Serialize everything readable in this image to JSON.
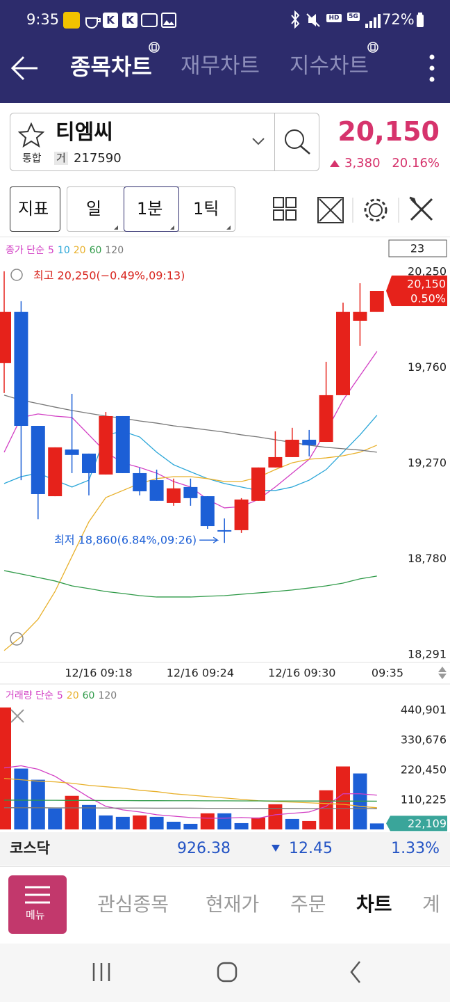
{
  "status_bar": {
    "time": "9:35",
    "battery": "72%"
  },
  "header": {
    "tabs": [
      "종목차트",
      "재무차트",
      "지수차트"
    ]
  },
  "stock": {
    "name": "티엠씨",
    "market": "통합",
    "tag": "거",
    "code": "217590",
    "price": "20,150",
    "change": "3,380",
    "change_rate": "20.16%"
  },
  "toolbar": {
    "buttons": [
      "지표",
      "일",
      "1분",
      "1틱"
    ]
  },
  "chart_data": [
    {
      "type": "candlestick",
      "legend_title": "종가 단순",
      "count": 23,
      "categories": [
        null,
        null,
        null,
        null,
        null,
        "12/16 09:18",
        null,
        null,
        null,
        null,
        null,
        "12/16 09:24",
        null,
        null,
        null,
        null,
        null,
        "12/16 09:30",
        null,
        null,
        null,
        null,
        "09:35"
      ],
      "open": [
        19780,
        20043,
        19459,
        19099,
        19338,
        19317,
        19210,
        19509,
        19217,
        19181,
        19064,
        19146,
        19099,
        18925,
        18925,
        19075,
        19246,
        19299,
        19388,
        19377,
        19616,
        19997,
        20043
      ],
      "high": [
        20250,
        20097,
        19459,
        19349,
        19623,
        19317,
        19530,
        19509,
        19246,
        19235,
        19189,
        19189,
        19099,
        18985,
        19089,
        19246,
        19431,
        19449,
        19438,
        19787,
        20090,
        20189,
        20150
      ],
      "low": [
        19627,
        19181,
        18981,
        19099,
        19217,
        19103,
        19210,
        19217,
        19103,
        19075,
        19050,
        19050,
        18932,
        18860,
        18911,
        19075,
        19246,
        19299,
        19303,
        19377,
        19616,
        19869,
        20043
      ],
      "close": [
        20043,
        19459,
        19110,
        19349,
        19310,
        19217,
        19509,
        19217,
        19124,
        19075,
        19139,
        19089,
        18946,
        18918,
        19082,
        19246,
        19299,
        19388,
        19360,
        19616,
        20043,
        20043,
        20150
      ],
      "up_color": "#e6221b",
      "down_color": "#1c5fd6",
      "series": [
        {
          "name": "5",
          "color": "#d23fc4",
          "values": [
            19324,
            19502,
            19520,
            19509,
            19502,
            19413,
            19324,
            19270,
            19246,
            19217,
            19174,
            19146,
            19082,
            19039,
            19046,
            19082,
            19146,
            19217,
            19288,
            19431,
            19591,
            19716,
            19840
          ]
        },
        {
          "name": "10",
          "color": "#2aa6d8",
          "values": [
            19164,
            19199,
            19217,
            19181,
            19146,
            19181,
            19413,
            19431,
            19402,
            19324,
            19260,
            19224,
            19189,
            19164,
            19146,
            19128,
            19128,
            19146,
            19181,
            19235,
            19324,
            19413,
            19513
          ]
        },
        {
          "name": "20",
          "color": "#e8b02a",
          "values": [
            18309,
            18380,
            18469,
            18611,
            18790,
            18968,
            19092,
            19128,
            19164,
            19189,
            19199,
            19199,
            19189,
            19174,
            19174,
            19196,
            19235,
            19270,
            19288,
            19295,
            19306,
            19324,
            19360
          ]
        },
        {
          "name": "60",
          "color": "#2f9a48",
          "values": [
            18718,
            18701,
            18683,
            18665,
            18640,
            18626,
            18611,
            18601,
            18590,
            18583,
            18583,
            18583,
            18587,
            18590,
            18597,
            18604,
            18611,
            18619,
            18629,
            18640,
            18654,
            18676,
            18690
          ]
        },
        {
          "name": "120",
          "color": "#777777",
          "values": [
            19616,
            19591,
            19573,
            19555,
            19538,
            19523,
            19509,
            19498,
            19484,
            19473,
            19459,
            19449,
            19438,
            19427,
            19413,
            19402,
            19388,
            19374,
            19360,
            19349,
            19342,
            19335,
            19324
          ]
        }
      ],
      "ylim": [
        18273,
        20410
      ],
      "yticks": [
        {
          "value": 20250,
          "label": "20,250"
        },
        {
          "value": 19760,
          "label": "19,760"
        },
        {
          "value": 19270,
          "label": "19,270"
        },
        {
          "value": 18780,
          "label": "18,780"
        },
        {
          "value": 18291,
          "label": "18,291"
        }
      ],
      "annotations": {
        "high": "최고 20,250(−0.49%,09:13)",
        "low": "최저 18,860(6.84%,09:26)"
      },
      "last_label": {
        "value": "20,150",
        "change": "0.50%"
      }
    },
    {
      "type": "bar",
      "legend_title": "거래량 단순",
      "values": [
        450000,
        224500,
        183300,
        77400,
        123900,
        90300,
        51600,
        46500,
        51600,
        46500,
        28400,
        20700,
        59400,
        59400,
        23200,
        43900,
        92900,
        38700,
        31000,
        144500,
        232300,
        206500,
        22109
      ],
      "value_labels": [
        null,
        null,
        null,
        null,
        null,
        null,
        null,
        null,
        null,
        null,
        null,
        null,
        null,
        null,
        null,
        null,
        null,
        null,
        null,
        null,
        null,
        null,
        "22,109"
      ],
      "colors": [
        "#e6221b",
        "#1c5fd6",
        "#1c5fd6",
        "#1c5fd6",
        "#e6221b",
        "#1c5fd6",
        "#1c5fd6",
        "#1c5fd6",
        "#e6221b",
        "#1c5fd6",
        "#1c5fd6",
        "#1c5fd6",
        "#e6221b",
        "#1c5fd6",
        "#1c5fd6",
        "#e6221b",
        "#e6221b",
        "#1c5fd6",
        "#e6221b",
        "#e6221b",
        "#e6221b",
        "#1c5fd6",
        "#1c5fd6"
      ],
      "series": [
        {
          "name": "5",
          "color": "#d23fc4",
          "values": [
            227000,
            234900,
            222000,
            196200,
            157400,
            118700,
            85200,
            72300,
            64500,
            54200,
            49000,
            43900,
            41300,
            41300,
            43900,
            41300,
            54200,
            59400,
            64500,
            85200,
            131600,
            131600,
            126500
          ]
        },
        {
          "name": "20",
          "color": "#e8b02a",
          "values": [
            188400,
            183300,
            178100,
            175500,
            170300,
            162600,
            157400,
            152300,
            144500,
            139400,
            131600,
            126500,
            121300,
            116200,
            111000,
            105800,
            103200,
            100700,
            98100,
            95500,
            92900,
            85200,
            80000
          ]
        },
        {
          "name": "60",
          "color": "#2f9a48",
          "values": [
            108000,
            108000,
            107500,
            107500,
            107000,
            107000,
            106500,
            106500,
            106000,
            106000,
            105800,
            105800,
            105500,
            105500,
            105200,
            105200,
            105000,
            105000,
            104800,
            104800,
            104500,
            104500,
            104200
          ]
        },
        {
          "name": "120",
          "color": "#777777",
          "values": [
            80000,
            80000,
            80000,
            79500,
            79500,
            79500,
            79000,
            79000,
            79000,
            78500,
            78500,
            78500,
            78000,
            78000,
            78000,
            77500,
            77500,
            77500,
            77000,
            77000,
            77000,
            76500,
            76500
          ]
        }
      ],
      "ylim": [
        0,
        480000
      ],
      "yticks": [
        {
          "value": 440901,
          "label": "440,901"
        },
        {
          "value": 330676,
          "label": "330,676"
        },
        {
          "value": 220450,
          "label": "220,450"
        },
        {
          "value": 110225,
          "label": "110,225"
        }
      ]
    }
  ],
  "index_bar": {
    "name": "코스닥",
    "value": "926.38",
    "change": "12.45",
    "change_rate": "1.33%"
  },
  "bottom_nav": {
    "menu": "메뉴",
    "tabs": [
      "관심종목",
      "현재가",
      "주문",
      "차트",
      "계"
    ]
  }
}
